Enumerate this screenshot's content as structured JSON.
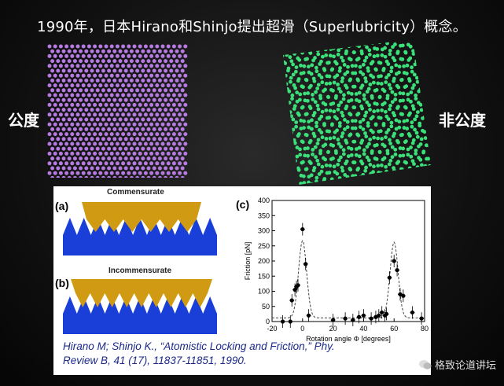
{
  "title": "1990年，日本Hirano和Shinjo提出超滑（Superlubricity）概念。",
  "labels": {
    "left": "公度",
    "right": "非公度"
  },
  "colors": {
    "commensurate_dots": "#b57be0",
    "incommensurate_dots": "#3be07a",
    "saw": "#1a3fd8",
    "slab": "#d09a12"
  },
  "figure": {
    "panel_a": {
      "tag": "(a)",
      "caption": "Commensurate"
    },
    "panel_b": {
      "tag": "(b)",
      "caption": "Incommensurate"
    },
    "panel_c": {
      "tag": "(c)"
    }
  },
  "chart_data": {
    "type": "scatter",
    "xlabel": "Rotation angle Φ [degrees]",
    "ylabel": "Friction [pN]",
    "xlim": [
      -20,
      80
    ],
    "ylim": [
      0,
      400
    ],
    "xticks": [
      -20,
      0,
      20,
      40,
      60,
      80
    ],
    "yticks": [
      0,
      50,
      100,
      150,
      200,
      250,
      300,
      350,
      400
    ],
    "points": [
      {
        "x": -13,
        "y": 0
      },
      {
        "x": -8,
        "y": 0
      },
      {
        "x": -7,
        "y": 70
      },
      {
        "x": -5,
        "y": 105
      },
      {
        "x": -4,
        "y": 115
      },
      {
        "x": -3,
        "y": 120
      },
      {
        "x": 0,
        "y": 305
      },
      {
        "x": 2,
        "y": 190
      },
      {
        "x": 4,
        "y": 20
      },
      {
        "x": 20,
        "y": 5
      },
      {
        "x": 28,
        "y": 10
      },
      {
        "x": 33,
        "y": 5
      },
      {
        "x": 37,
        "y": 15
      },
      {
        "x": 40,
        "y": 20
      },
      {
        "x": 45,
        "y": 10
      },
      {
        "x": 48,
        "y": 15
      },
      {
        "x": 50,
        "y": 20
      },
      {
        "x": 52,
        "y": 30
      },
      {
        "x": 54,
        "y": 20
      },
      {
        "x": 55,
        "y": 25
      },
      {
        "x": 57,
        "y": 145
      },
      {
        "x": 60,
        "y": 200
      },
      {
        "x": 62,
        "y": 170
      },
      {
        "x": 64,
        "y": 90
      },
      {
        "x": 66,
        "y": 85
      },
      {
        "x": 72,
        "y": 30
      },
      {
        "x": 78,
        "y": 10
      }
    ],
    "curve_peaks": [
      0,
      60
    ]
  },
  "citation": {
    "line1": "Hirano M; Shinjo K.,  “Atomistic Locking and Friction,”  Phy.",
    "line2": "Review B, 41 (17), 11837-11851, 1990."
  },
  "watermark": {
    "text": "格致论道讲坛",
    "icon": "wechat-icon"
  }
}
